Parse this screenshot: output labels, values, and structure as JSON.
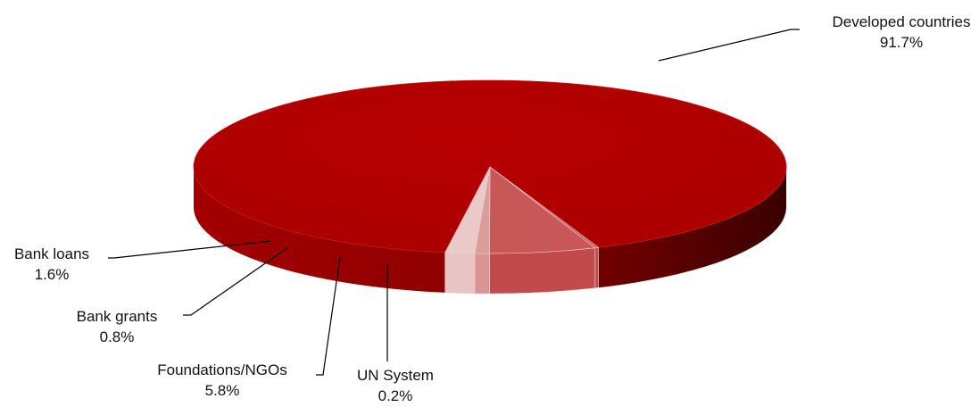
{
  "chart_data": {
    "type": "pie",
    "title": "",
    "categories": [
      "Developed countries",
      "UN System",
      "Foundations/NGOs",
      "Bank grants",
      "Bank loans"
    ],
    "values": [
      91.7,
      0.2,
      5.8,
      0.8,
      1.6
    ],
    "labels": [
      {
        "name": "Developed countries",
        "value": "91.7%"
      },
      {
        "name": "UN System",
        "value": "0.2%"
      },
      {
        "name": "Foundations/NGOs",
        "value": "5.8%"
      },
      {
        "name": "Bank grants",
        "value": "0.8%"
      },
      {
        "name": "Bank loans",
        "value": "1.6%"
      }
    ],
    "colors": [
      "#b30000",
      "#c34a4a",
      "#c34a4a",
      "#d99494",
      "#e8c4c4"
    ],
    "style": "3d-tilted",
    "legend": "none"
  }
}
